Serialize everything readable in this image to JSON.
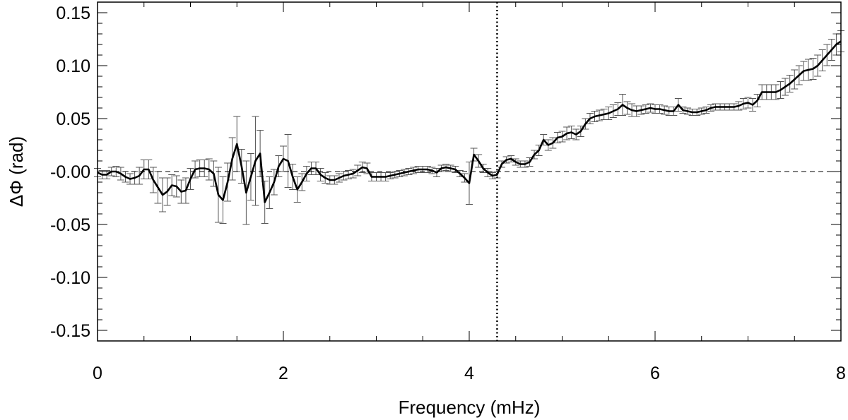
{
  "chart_data": {
    "type": "line",
    "xlabel": "Frequency (mHz)",
    "ylabel": "ΔΦ (rad)",
    "xlim": [
      0,
      8
    ],
    "ylim": [
      -0.16,
      0.16
    ],
    "xticks": [
      "0",
      "2",
      "4",
      "6",
      "8"
    ],
    "xtick_values": [
      0,
      2,
      4,
      6,
      8
    ],
    "yticks": [
      "-0.15",
      "-0.10",
      "-0.05",
      "-0.00",
      "0.05",
      "0.10",
      "0.15"
    ],
    "ytick_values": [
      -0.15,
      -0.1,
      -0.05,
      0.0,
      0.05,
      0.1,
      0.15
    ],
    "reference_lines": {
      "horizontal_dashed_y": 0.0,
      "vertical_dotted_x": 4.3
    },
    "series": [
      {
        "x": [
          0.0,
          0.05,
          0.1,
          0.15,
          0.2,
          0.25,
          0.3,
          0.35,
          0.4,
          0.45,
          0.5,
          0.55,
          0.6,
          0.65,
          0.7,
          0.75,
          0.8,
          0.85,
          0.9,
          0.95,
          1.0,
          1.05,
          1.1,
          1.15,
          1.2,
          1.25,
          1.3,
          1.35,
          1.4,
          1.45,
          1.5,
          1.55,
          1.6,
          1.65,
          1.7,
          1.75,
          1.8,
          1.85,
          1.9,
          1.95,
          2.0,
          2.05,
          2.1,
          2.15,
          2.2,
          2.25,
          2.3,
          2.35,
          2.4,
          2.45,
          2.5,
          2.55,
          2.6,
          2.65,
          2.7,
          2.75,
          2.8,
          2.85,
          2.9,
          2.95,
          3.0,
          3.05,
          3.1,
          3.15,
          3.2,
          3.25,
          3.3,
          3.35,
          3.4,
          3.45,
          3.5,
          3.55,
          3.6,
          3.65,
          3.7,
          3.75,
          3.8,
          3.85,
          3.9,
          3.95,
          4.0,
          4.05,
          4.1,
          4.15,
          4.2,
          4.25,
          4.3,
          4.35,
          4.4,
          4.45,
          4.5,
          4.55,
          4.6,
          4.65,
          4.7,
          4.75,
          4.8,
          4.85,
          4.9,
          4.95,
          5.0,
          5.05,
          5.1,
          5.15,
          5.2,
          5.25,
          5.3,
          5.35,
          5.4,
          5.45,
          5.5,
          5.55,
          5.6,
          5.65,
          5.7,
          5.75,
          5.8,
          5.85,
          5.9,
          5.95,
          6.0,
          6.05,
          6.1,
          6.15,
          6.2,
          6.25,
          6.3,
          6.35,
          6.4,
          6.45,
          6.5,
          6.55,
          6.6,
          6.65,
          6.7,
          6.75,
          6.8,
          6.85,
          6.9,
          6.95,
          7.0,
          7.05,
          7.1,
          7.15,
          7.2,
          7.25,
          7.3,
          7.35,
          7.4,
          7.45,
          7.5,
          7.55,
          7.6,
          7.65,
          7.7,
          7.75,
          7.8,
          7.85,
          7.9,
          7.95,
          8.0
        ],
        "y": [
          -0.001,
          -0.003,
          -0.003,
          0.0,
          0.0,
          -0.002,
          -0.005,
          -0.007,
          -0.006,
          -0.004,
          0.002,
          0.002,
          -0.008,
          -0.015,
          -0.022,
          -0.019,
          -0.013,
          -0.014,
          -0.019,
          -0.018,
          -0.007,
          0.002,
          0.003,
          0.003,
          0.002,
          -0.002,
          -0.022,
          -0.027,
          -0.01,
          0.012,
          0.026,
          0.005,
          -0.02,
          -0.005,
          0.01,
          0.017,
          -0.029,
          -0.02,
          -0.01,
          0.005,
          0.012,
          0.01,
          -0.005,
          -0.017,
          -0.01,
          -0.002,
          0.003,
          0.003,
          -0.003,
          -0.006,
          -0.008,
          -0.008,
          -0.006,
          -0.004,
          -0.003,
          -0.002,
          0.001,
          0.004,
          0.003,
          -0.005,
          -0.005,
          -0.005,
          -0.005,
          -0.004,
          -0.003,
          -0.002,
          -0.001,
          0.0,
          0.001,
          0.002,
          0.002,
          0.002,
          0.001,
          -0.001,
          0.003,
          0.004,
          0.003,
          0.002,
          -0.002,
          -0.006,
          -0.011,
          0.016,
          0.01,
          0.003,
          -0.001,
          -0.004,
          -0.003,
          0.007,
          0.011,
          0.012,
          0.009,
          0.007,
          0.007,
          0.009,
          0.016,
          0.02,
          0.03,
          0.025,
          0.027,
          0.032,
          0.033,
          0.036,
          0.037,
          0.035,
          0.038,
          0.045,
          0.05,
          0.052,
          0.053,
          0.054,
          0.055,
          0.057,
          0.059,
          0.063,
          0.06,
          0.058,
          0.057,
          0.058,
          0.059,
          0.06,
          0.059,
          0.059,
          0.058,
          0.057,
          0.057,
          0.063,
          0.058,
          0.057,
          0.056,
          0.056,
          0.057,
          0.058,
          0.06,
          0.061,
          0.061,
          0.061,
          0.061,
          0.061,
          0.062,
          0.064,
          0.065,
          0.063,
          0.067,
          0.075,
          0.075,
          0.075,
          0.075,
          0.077,
          0.08,
          0.083,
          0.087,
          0.091,
          0.095,
          0.096,
          0.097,
          0.1,
          0.105,
          0.11,
          0.115,
          0.12,
          0.123
        ],
        "err": [
          0.004,
          0.004,
          0.004,
          0.004,
          0.005,
          0.006,
          0.005,
          0.005,
          0.006,
          0.008,
          0.009,
          0.009,
          0.012,
          0.015,
          0.016,
          0.013,
          0.01,
          0.01,
          0.011,
          0.012,
          0.01,
          0.008,
          0.008,
          0.008,
          0.01,
          0.012,
          0.026,
          0.022,
          0.018,
          0.02,
          0.026,
          0.016,
          0.03,
          0.022,
          0.042,
          0.022,
          0.02,
          0.015,
          0.012,
          0.01,
          0.012,
          0.025,
          0.012,
          0.012,
          0.008,
          0.007,
          0.006,
          0.006,
          0.006,
          0.005,
          0.004,
          0.004,
          0.004,
          0.004,
          0.004,
          0.004,
          0.005,
          0.005,
          0.005,
          0.004,
          0.004,
          0.004,
          0.004,
          0.003,
          0.003,
          0.003,
          0.003,
          0.003,
          0.003,
          0.003,
          0.003,
          0.003,
          0.003,
          0.004,
          0.003,
          0.003,
          0.003,
          0.003,
          0.003,
          0.004,
          0.02,
          0.006,
          0.006,
          0.004,
          0.004,
          0.003,
          0.003,
          0.003,
          0.003,
          0.003,
          0.003,
          0.003,
          0.003,
          0.004,
          0.004,
          0.005,
          0.005,
          0.005,
          0.005,
          0.005,
          0.005,
          0.006,
          0.006,
          0.005,
          0.005,
          0.005,
          0.005,
          0.005,
          0.005,
          0.005,
          0.006,
          0.006,
          0.006,
          0.01,
          0.006,
          0.006,
          0.005,
          0.004,
          0.004,
          0.004,
          0.004,
          0.004,
          0.004,
          0.004,
          0.004,
          0.006,
          0.003,
          0.003,
          0.003,
          0.003,
          0.003,
          0.003,
          0.003,
          0.003,
          0.003,
          0.003,
          0.003,
          0.003,
          0.004,
          0.005,
          0.005,
          0.006,
          0.006,
          0.007,
          0.007,
          0.007,
          0.007,
          0.008,
          0.008,
          0.008,
          0.009,
          0.009,
          0.009,
          0.01,
          0.01,
          0.01,
          0.01,
          0.01,
          0.01,
          0.01,
          0.01
        ]
      }
    ]
  }
}
